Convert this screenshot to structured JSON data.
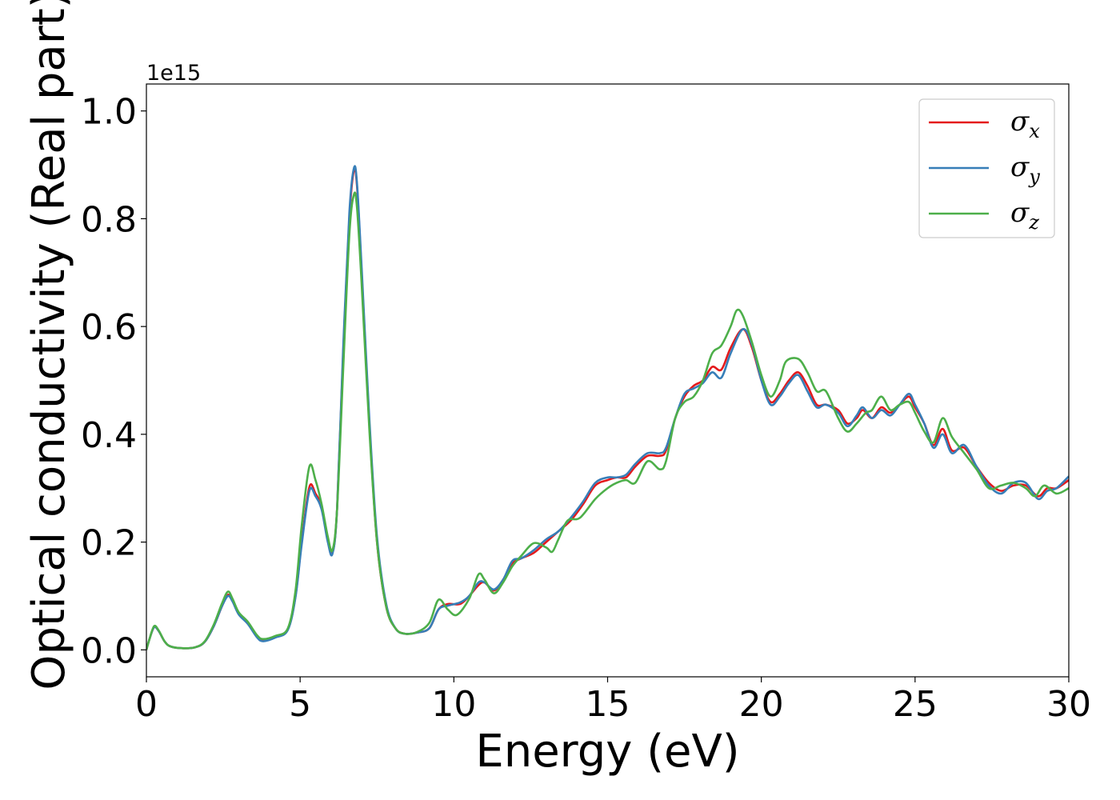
{
  "chart_data": {
    "type": "line",
    "xlabel": "Energy (eV)",
    "ylabel": "Optical conductivity (Real part)",
    "y_offset_text": "1e15",
    "y_multiplier": 1000000000000000.0,
    "xlim": [
      0,
      30
    ],
    "ylim": [
      -0.05,
      1.05
    ],
    "x_ticks": [
      0,
      5,
      10,
      15,
      20,
      25,
      30
    ],
    "x_tick_labels": [
      "0",
      "5",
      "10",
      "15",
      "20",
      "25",
      "30"
    ],
    "y_ticks": [
      0.0,
      0.2,
      0.4,
      0.6,
      0.8,
      1.0
    ],
    "y_tick_labels": [
      "0.0",
      "0.2",
      "0.4",
      "0.6",
      "0.8",
      "1.0"
    ],
    "grid": false,
    "legend_position": "top-right",
    "series": [
      {
        "name": "σ_x",
        "label_base": "σ",
        "label_sub": "x",
        "color": "#e41a1c",
        "points": [
          [
            0,
            0
          ],
          [
            0.1,
            0.02
          ],
          [
            0.25,
            0.042
          ],
          [
            0.4,
            0.035
          ],
          [
            0.6,
            0.015
          ],
          [
            0.8,
            0.006
          ],
          [
            1.2,
            0.003
          ],
          [
            1.6,
            0.005
          ],
          [
            1.9,
            0.015
          ],
          [
            2.2,
            0.045
          ],
          [
            2.45,
            0.08
          ],
          [
            2.65,
            0.102
          ],
          [
            2.8,
            0.092
          ],
          [
            3.0,
            0.068
          ],
          [
            3.3,
            0.05
          ],
          [
            3.6,
            0.025
          ],
          [
            3.8,
            0.018
          ],
          [
            4.2,
            0.024
          ],
          [
            4.6,
            0.038
          ],
          [
            4.85,
            0.1
          ],
          [
            5.05,
            0.2
          ],
          [
            5.3,
            0.302
          ],
          [
            5.5,
            0.29
          ],
          [
            5.7,
            0.265
          ],
          [
            5.9,
            0.205
          ],
          [
            6.05,
            0.18
          ],
          [
            6.2,
            0.26
          ],
          [
            6.4,
            0.55
          ],
          [
            6.6,
            0.8
          ],
          [
            6.75,
            0.89
          ],
          [
            6.85,
            0.86
          ],
          [
            7.0,
            0.7
          ],
          [
            7.25,
            0.42
          ],
          [
            7.5,
            0.2
          ],
          [
            7.8,
            0.08
          ],
          [
            8.1,
            0.04
          ],
          [
            8.4,
            0.03
          ],
          [
            8.8,
            0.032
          ],
          [
            9.2,
            0.04
          ],
          [
            9.5,
            0.075
          ],
          [
            9.8,
            0.085
          ],
          [
            10.2,
            0.085
          ],
          [
            10.5,
            0.1
          ],
          [
            10.8,
            0.12
          ],
          [
            11.0,
            0.125
          ],
          [
            11.3,
            0.11
          ],
          [
            11.6,
            0.13
          ],
          [
            11.9,
            0.16
          ],
          [
            12.2,
            0.17
          ],
          [
            12.6,
            0.18
          ],
          [
            13.0,
            0.2
          ],
          [
            13.4,
            0.22
          ],
          [
            13.8,
            0.24
          ],
          [
            14.2,
            0.27
          ],
          [
            14.6,
            0.305
          ],
          [
            15.0,
            0.315
          ],
          [
            15.3,
            0.32
          ],
          [
            15.6,
            0.32
          ],
          [
            15.9,
            0.34
          ],
          [
            16.3,
            0.36
          ],
          [
            16.7,
            0.36
          ],
          [
            16.9,
            0.37
          ],
          [
            17.2,
            0.43
          ],
          [
            17.5,
            0.47
          ],
          [
            17.8,
            0.49
          ],
          [
            18.1,
            0.5
          ],
          [
            18.4,
            0.525
          ],
          [
            18.7,
            0.52
          ],
          [
            19.0,
            0.56
          ],
          [
            19.4,
            0.595
          ],
          [
            19.7,
            0.56
          ],
          [
            20.0,
            0.5
          ],
          [
            20.3,
            0.46
          ],
          [
            20.6,
            0.475
          ],
          [
            20.9,
            0.5
          ],
          [
            21.2,
            0.515
          ],
          [
            21.5,
            0.49
          ],
          [
            21.8,
            0.455
          ],
          [
            22.1,
            0.455
          ],
          [
            22.5,
            0.445
          ],
          [
            22.8,
            0.42
          ],
          [
            23.1,
            0.43
          ],
          [
            23.3,
            0.445
          ],
          [
            23.6,
            0.43
          ],
          [
            23.9,
            0.45
          ],
          [
            24.2,
            0.44
          ],
          [
            24.5,
            0.455
          ],
          [
            24.8,
            0.47
          ],
          [
            25.0,
            0.45
          ],
          [
            25.3,
            0.42
          ],
          [
            25.6,
            0.38
          ],
          [
            25.9,
            0.41
          ],
          [
            26.2,
            0.37
          ],
          [
            26.6,
            0.375
          ],
          [
            27.0,
            0.34
          ],
          [
            27.4,
            0.31
          ],
          [
            27.8,
            0.295
          ],
          [
            28.2,
            0.305
          ],
          [
            28.6,
            0.305
          ],
          [
            29.0,
            0.285
          ],
          [
            29.3,
            0.3
          ],
          [
            29.6,
            0.3
          ],
          [
            30.0,
            0.315
          ]
        ]
      },
      {
        "name": "σ_y",
        "label_base": "σ",
        "label_sub": "y",
        "color": "#377eb8",
        "points": [
          [
            0,
            0
          ],
          [
            0.1,
            0.02
          ],
          [
            0.25,
            0.042
          ],
          [
            0.4,
            0.035
          ],
          [
            0.6,
            0.015
          ],
          [
            0.8,
            0.006
          ],
          [
            1.2,
            0.003
          ],
          [
            1.6,
            0.005
          ],
          [
            1.9,
            0.015
          ],
          [
            2.2,
            0.045
          ],
          [
            2.45,
            0.08
          ],
          [
            2.65,
            0.1
          ],
          [
            2.8,
            0.09
          ],
          [
            3.0,
            0.066
          ],
          [
            3.3,
            0.048
          ],
          [
            3.6,
            0.023
          ],
          [
            3.8,
            0.016
          ],
          [
            4.2,
            0.023
          ],
          [
            4.6,
            0.037
          ],
          [
            4.85,
            0.098
          ],
          [
            5.05,
            0.195
          ],
          [
            5.3,
            0.295
          ],
          [
            5.5,
            0.285
          ],
          [
            5.7,
            0.26
          ],
          [
            5.9,
            0.2
          ],
          [
            6.05,
            0.178
          ],
          [
            6.2,
            0.26
          ],
          [
            6.4,
            0.56
          ],
          [
            6.6,
            0.81
          ],
          [
            6.75,
            0.894
          ],
          [
            6.85,
            0.865
          ],
          [
            7.0,
            0.71
          ],
          [
            7.25,
            0.43
          ],
          [
            7.5,
            0.21
          ],
          [
            7.8,
            0.085
          ],
          [
            8.1,
            0.04
          ],
          [
            8.4,
            0.03
          ],
          [
            8.8,
            0.032
          ],
          [
            9.2,
            0.04
          ],
          [
            9.5,
            0.075
          ],
          [
            9.8,
            0.082
          ],
          [
            10.2,
            0.088
          ],
          [
            10.5,
            0.1
          ],
          [
            10.8,
            0.125
          ],
          [
            11.0,
            0.125
          ],
          [
            11.3,
            0.112
          ],
          [
            11.6,
            0.13
          ],
          [
            11.9,
            0.165
          ],
          [
            12.2,
            0.17
          ],
          [
            12.6,
            0.185
          ],
          [
            13.0,
            0.205
          ],
          [
            13.4,
            0.22
          ],
          [
            13.8,
            0.245
          ],
          [
            14.2,
            0.275
          ],
          [
            14.6,
            0.31
          ],
          [
            15.0,
            0.32
          ],
          [
            15.3,
            0.32
          ],
          [
            15.6,
            0.325
          ],
          [
            15.9,
            0.345
          ],
          [
            16.3,
            0.365
          ],
          [
            16.7,
            0.365
          ],
          [
            16.9,
            0.375
          ],
          [
            17.2,
            0.43
          ],
          [
            17.5,
            0.475
          ],
          [
            17.8,
            0.485
          ],
          [
            18.1,
            0.495
          ],
          [
            18.4,
            0.515
          ],
          [
            18.7,
            0.505
          ],
          [
            19.0,
            0.55
          ],
          [
            19.4,
            0.595
          ],
          [
            19.7,
            0.565
          ],
          [
            20.0,
            0.5
          ],
          [
            20.3,
            0.455
          ],
          [
            20.6,
            0.47
          ],
          [
            20.9,
            0.495
          ],
          [
            21.2,
            0.51
          ],
          [
            21.5,
            0.48
          ],
          [
            21.8,
            0.45
          ],
          [
            22.1,
            0.455
          ],
          [
            22.5,
            0.44
          ],
          [
            22.8,
            0.415
          ],
          [
            23.1,
            0.435
          ],
          [
            23.3,
            0.45
          ],
          [
            23.6,
            0.43
          ],
          [
            23.9,
            0.445
          ],
          [
            24.2,
            0.435
          ],
          [
            24.5,
            0.455
          ],
          [
            24.8,
            0.475
          ],
          [
            25.0,
            0.455
          ],
          [
            25.3,
            0.42
          ],
          [
            25.6,
            0.375
          ],
          [
            25.9,
            0.4
          ],
          [
            26.2,
            0.365
          ],
          [
            26.6,
            0.38
          ],
          [
            27.0,
            0.34
          ],
          [
            27.4,
            0.305
          ],
          [
            27.8,
            0.29
          ],
          [
            28.2,
            0.31
          ],
          [
            28.6,
            0.31
          ],
          [
            29.0,
            0.28
          ],
          [
            29.3,
            0.295
          ],
          [
            29.6,
            0.3
          ],
          [
            30.0,
            0.322
          ]
        ]
      },
      {
        "name": "σ_z",
        "label_base": "σ",
        "label_sub": "z",
        "color": "#4daf4a",
        "points": [
          [
            0,
            0
          ],
          [
            0.1,
            0.02
          ],
          [
            0.25,
            0.044
          ],
          [
            0.4,
            0.036
          ],
          [
            0.6,
            0.015
          ],
          [
            0.8,
            0.006
          ],
          [
            1.2,
            0.003
          ],
          [
            1.6,
            0.005
          ],
          [
            1.9,
            0.016
          ],
          [
            2.2,
            0.048
          ],
          [
            2.45,
            0.085
          ],
          [
            2.65,
            0.108
          ],
          [
            2.8,
            0.095
          ],
          [
            3.0,
            0.07
          ],
          [
            3.3,
            0.052
          ],
          [
            3.6,
            0.027
          ],
          [
            3.8,
            0.02
          ],
          [
            4.2,
            0.026
          ],
          [
            4.6,
            0.04
          ],
          [
            4.85,
            0.11
          ],
          [
            5.05,
            0.23
          ],
          [
            5.3,
            0.34
          ],
          [
            5.5,
            0.315
          ],
          [
            5.7,
            0.27
          ],
          [
            5.9,
            0.21
          ],
          [
            6.05,
            0.185
          ],
          [
            6.2,
            0.26
          ],
          [
            6.4,
            0.52
          ],
          [
            6.6,
            0.77
          ],
          [
            6.75,
            0.845
          ],
          [
            6.85,
            0.82
          ],
          [
            7.0,
            0.68
          ],
          [
            7.25,
            0.41
          ],
          [
            7.5,
            0.2
          ],
          [
            7.8,
            0.08
          ],
          [
            8.1,
            0.04
          ],
          [
            8.4,
            0.03
          ],
          [
            8.8,
            0.033
          ],
          [
            9.2,
            0.05
          ],
          [
            9.5,
            0.093
          ],
          [
            9.8,
            0.075
          ],
          [
            10.1,
            0.065
          ],
          [
            10.5,
            0.095
          ],
          [
            10.8,
            0.14
          ],
          [
            11.0,
            0.13
          ],
          [
            11.3,
            0.105
          ],
          [
            11.6,
            0.125
          ],
          [
            11.9,
            0.155
          ],
          [
            12.2,
            0.175
          ],
          [
            12.6,
            0.198
          ],
          [
            13.0,
            0.19
          ],
          [
            13.2,
            0.182
          ],
          [
            13.4,
            0.205
          ],
          [
            13.7,
            0.24
          ],
          [
            14.1,
            0.245
          ],
          [
            14.6,
            0.28
          ],
          [
            15.0,
            0.3
          ],
          [
            15.3,
            0.31
          ],
          [
            15.6,
            0.315
          ],
          [
            15.9,
            0.31
          ],
          [
            16.3,
            0.35
          ],
          [
            16.7,
            0.335
          ],
          [
            16.9,
            0.35
          ],
          [
            17.2,
            0.43
          ],
          [
            17.5,
            0.46
          ],
          [
            17.8,
            0.47
          ],
          [
            18.1,
            0.5
          ],
          [
            18.4,
            0.55
          ],
          [
            18.7,
            0.565
          ],
          [
            19.0,
            0.6
          ],
          [
            19.2,
            0.63
          ],
          [
            19.4,
            0.62
          ],
          [
            19.7,
            0.57
          ],
          [
            20.0,
            0.51
          ],
          [
            20.3,
            0.47
          ],
          [
            20.6,
            0.5
          ],
          [
            20.8,
            0.535
          ],
          [
            21.2,
            0.54
          ],
          [
            21.5,
            0.515
          ],
          [
            21.8,
            0.48
          ],
          [
            22.1,
            0.48
          ],
          [
            22.5,
            0.43
          ],
          [
            22.8,
            0.405
          ],
          [
            23.1,
            0.42
          ],
          [
            23.4,
            0.44
          ],
          [
            23.6,
            0.445
          ],
          [
            23.9,
            0.47
          ],
          [
            24.2,
            0.445
          ],
          [
            24.5,
            0.455
          ],
          [
            24.8,
            0.46
          ],
          [
            25.0,
            0.44
          ],
          [
            25.3,
            0.405
          ],
          [
            25.6,
            0.385
          ],
          [
            25.9,
            0.43
          ],
          [
            26.2,
            0.395
          ],
          [
            26.6,
            0.365
          ],
          [
            27.0,
            0.335
          ],
          [
            27.4,
            0.3
          ],
          [
            27.8,
            0.305
          ],
          [
            28.2,
            0.31
          ],
          [
            28.6,
            0.3
          ],
          [
            28.9,
            0.285
          ],
          [
            29.2,
            0.305
          ],
          [
            29.6,
            0.29
          ],
          [
            30.0,
            0.3
          ]
        ]
      }
    ]
  }
}
